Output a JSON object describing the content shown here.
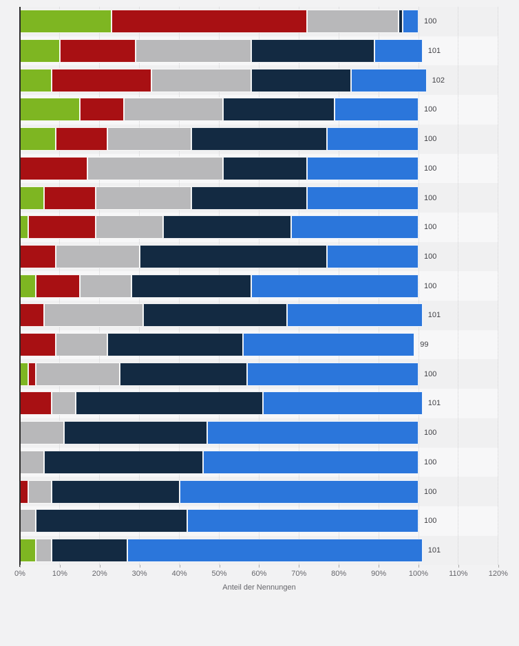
{
  "chart_data": {
    "type": "bar",
    "orientation": "horizontal",
    "stacked": true,
    "title": "",
    "xlabel": "Anteil der Nennungen",
    "ylabel": "",
    "xlim": [
      0,
      120
    ],
    "x_ticks": [
      "0%",
      "10%",
      "20%",
      "30%",
      "40%",
      "50%",
      "60%",
      "70%",
      "80%",
      "90%",
      "100%",
      "110%",
      "120%"
    ],
    "grid": "vertical-dotted",
    "legend": "none",
    "series": [
      {
        "name": "green",
        "color": "#7eb622"
      },
      {
        "name": "dark-red",
        "color": "#a81013"
      },
      {
        "name": "gray",
        "color": "#b8b8ba"
      },
      {
        "name": "dark-blue",
        "color": "#132a42"
      },
      {
        "name": "blue",
        "color": "#2b76db"
      }
    ],
    "rows": [
      {
        "values": [
          23,
          49,
          23,
          1,
          4
        ],
        "label": "100"
      },
      {
        "values": [
          10,
          19,
          29,
          31,
          12
        ],
        "label": "101"
      },
      {
        "values": [
          8,
          25,
          25,
          25,
          19
        ],
        "label": "102"
      },
      {
        "values": [
          15,
          11,
          25,
          28,
          21
        ],
        "label": "100"
      },
      {
        "values": [
          9,
          13,
          21,
          34,
          23
        ],
        "label": "100"
      },
      {
        "values": [
          0,
          17,
          34,
          21,
          28
        ],
        "label": "100"
      },
      {
        "values": [
          6,
          13,
          24,
          29,
          28
        ],
        "label": "100"
      },
      {
        "values": [
          2,
          17,
          17,
          32,
          32
        ],
        "label": "100"
      },
      {
        "values": [
          0,
          9,
          21,
          47,
          23
        ],
        "label": "100"
      },
      {
        "values": [
          4,
          11,
          13,
          30,
          42
        ],
        "label": "100"
      },
      {
        "values": [
          0,
          6,
          25,
          36,
          34
        ],
        "label": "101"
      },
      {
        "values": [
          0,
          9,
          13,
          34,
          43
        ],
        "label": "99"
      },
      {
        "values": [
          2,
          2,
          21,
          32,
          43
        ],
        "label": "100"
      },
      {
        "values": [
          0,
          8,
          6,
          47,
          40
        ],
        "label": "101"
      },
      {
        "values": [
          0,
          0,
          11,
          36,
          53
        ],
        "label": "100"
      },
      {
        "values": [
          0,
          0,
          6,
          40,
          54
        ],
        "label": "100"
      },
      {
        "values": [
          0,
          2,
          6,
          32,
          60
        ],
        "label": "100"
      },
      {
        "values": [
          0,
          0,
          4,
          38,
          58
        ],
        "label": "100"
      },
      {
        "values": [
          4,
          0,
          4,
          19,
          74
        ],
        "label": "101"
      }
    ]
  },
  "colors": {
    "background": "#f2f2f3",
    "band_odd": "#f0f0f1",
    "band_even": "#f7f7f8",
    "axis_line": "#2a2a2a",
    "grid_line": "#d2d2d4",
    "tick": "#a8a8a8",
    "tick_label": "#65656a",
    "value_label": "#404045"
  }
}
